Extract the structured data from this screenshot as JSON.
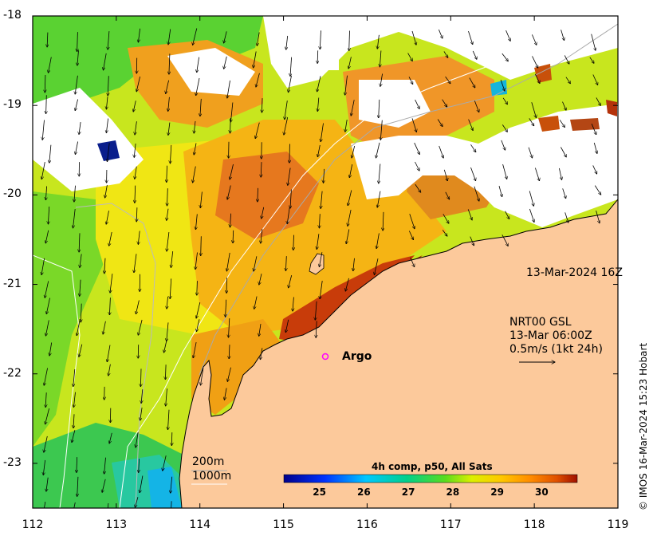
{
  "map": {
    "lon_ticks": [
      "112",
      "113",
      "114",
      "115",
      "116",
      "117",
      "118",
      "119"
    ],
    "lat_ticks": [
      "-18",
      "-19",
      "-20",
      "-21",
      "-22",
      "-23"
    ],
    "lon_range": [
      112,
      119
    ],
    "lat_range": [
      -23.5,
      -18
    ],
    "timestamp": "13-Mar-2024 16Z",
    "current_product": "NRT00 GSL",
    "current_time": "13-Mar 06:00Z",
    "current_scale": "0.5m/s (1kt 24h)",
    "argo_label": "Argo",
    "argo_position": [
      115.52,
      -21.8
    ],
    "contour_200": "200m",
    "contour_1000": "1000m",
    "colorbar_title": "4h comp, p50, All Sats",
    "colorbar_ticks": [
      "25",
      "26",
      "27",
      "28",
      "29",
      "30"
    ],
    "colorbar_range": [
      24.2,
      30.8
    ],
    "credit": "© IMOS 16-Mar-2024 15:23 Hobart",
    "colors": {
      "land": "#fcc99b",
      "argo_marker": "#ff00ff",
      "cloud": "#ffffff"
    }
  }
}
